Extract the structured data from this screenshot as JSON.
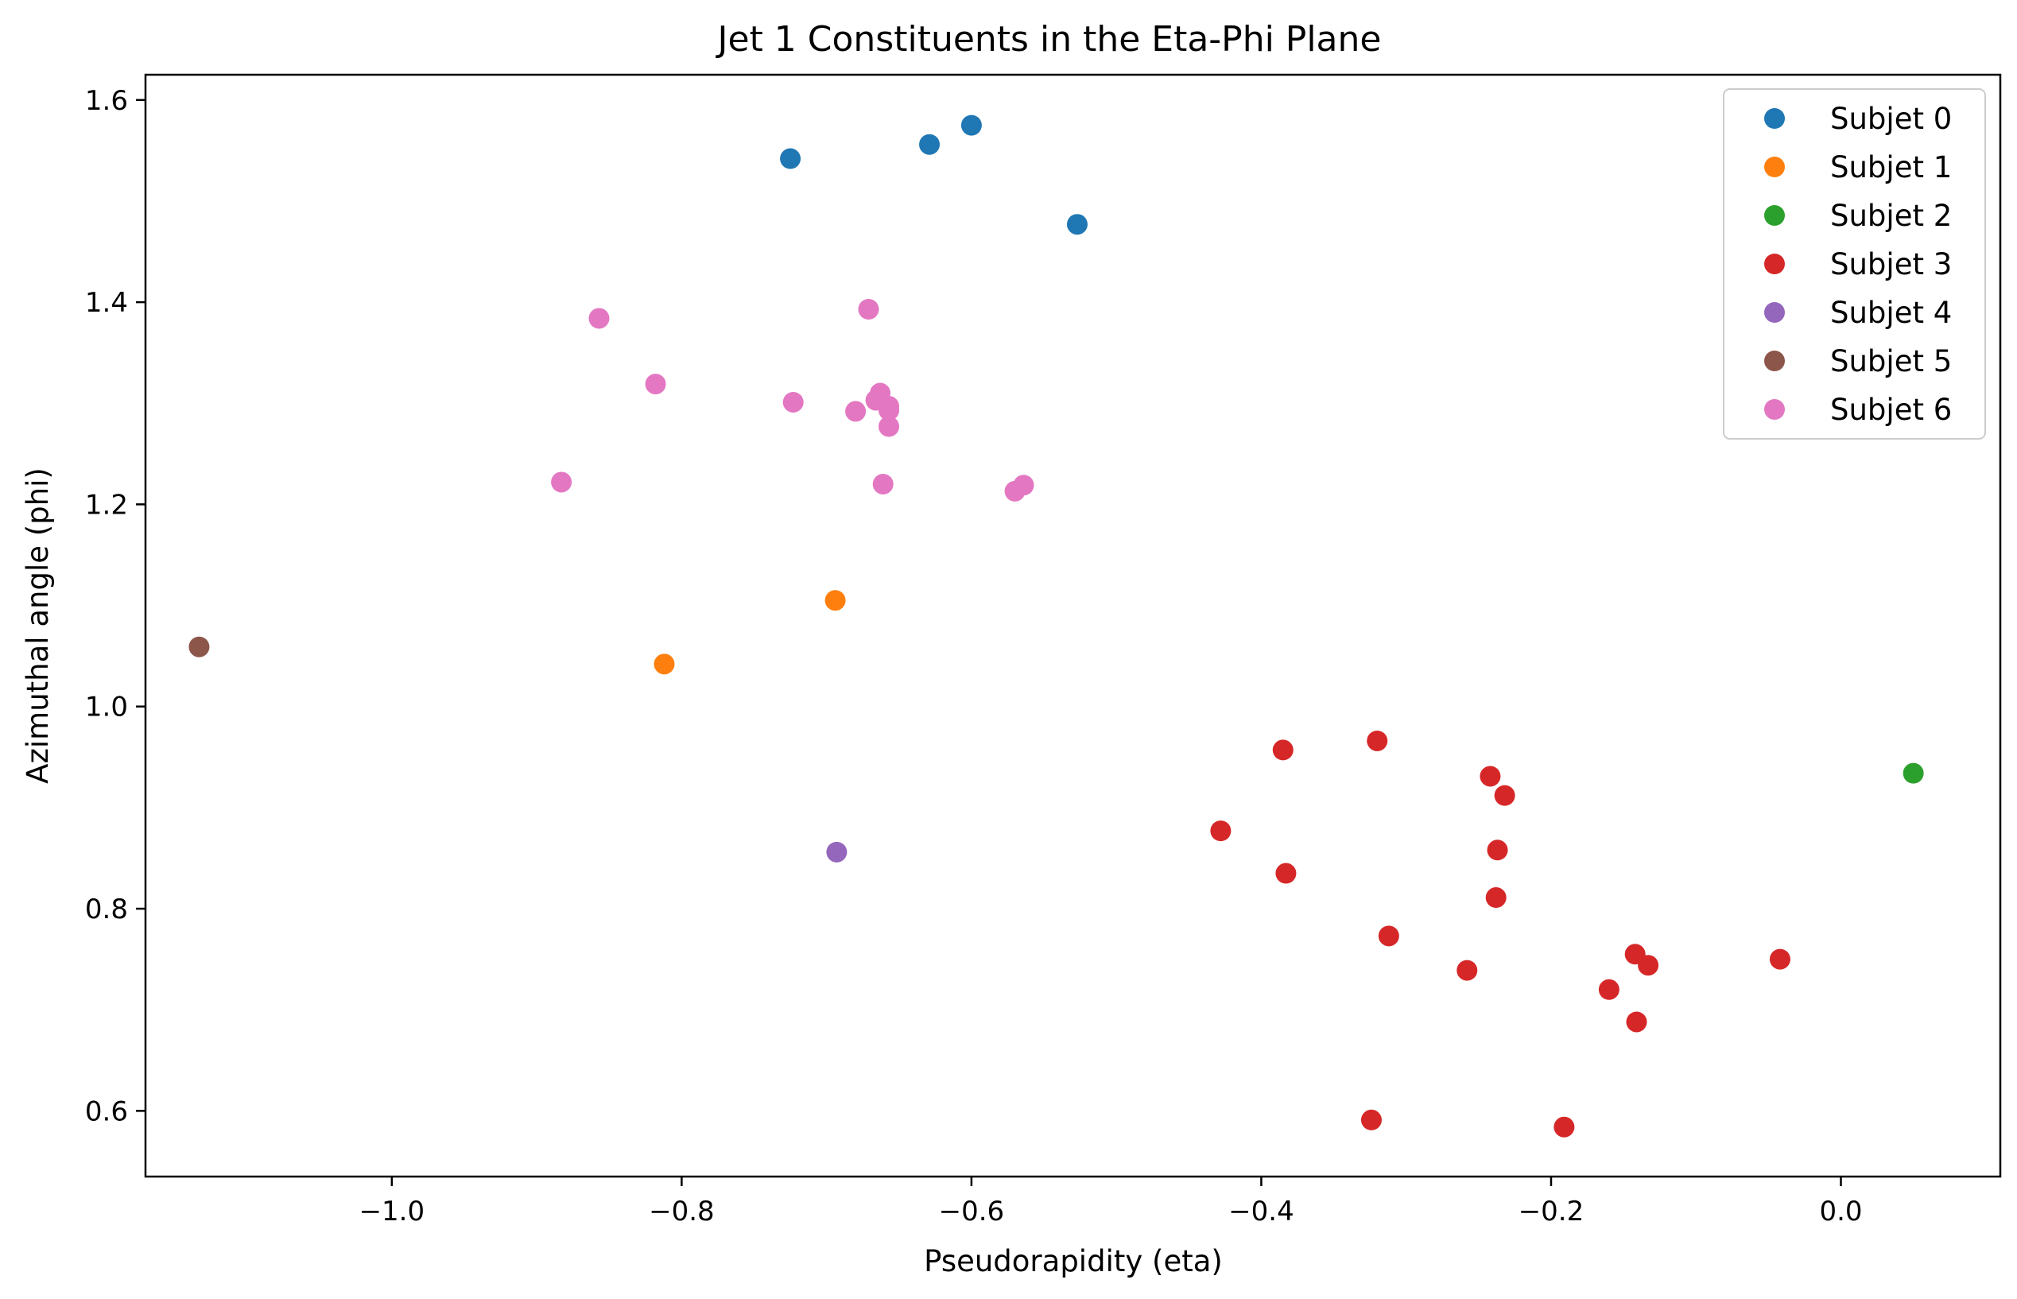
{
  "chart_data": {
    "type": "scatter",
    "title": "Jet 1 Constituents in the Eta-Phi Plane",
    "xlabel": "Pseudorapidity (eta)",
    "ylabel": "Azimuthal angle (phi)",
    "xlim": [
      -1.17,
      0.11
    ],
    "ylim": [
      0.535,
      1.625
    ],
    "xticks": [
      -1.0,
      -0.8,
      -0.6,
      -0.4,
      -0.2,
      0.0
    ],
    "xtick_labels": [
      "−1.0",
      "−0.8",
      "−0.6",
      "−0.4",
      "−0.2",
      "0.0"
    ],
    "yticks": [
      0.6,
      0.8,
      1.0,
      1.2,
      1.4,
      1.6
    ],
    "ytick_labels": [
      "0.6",
      "0.8",
      "1.0",
      "1.2",
      "1.4",
      "1.6"
    ],
    "grid": false,
    "legend_position": "top-right",
    "series": [
      {
        "name": "Subjet 0",
        "color": "#1f77b4",
        "points": [
          [
            -0.725,
            1.542
          ],
          [
            -0.629,
            1.556
          ],
          [
            -0.6,
            1.575
          ],
          [
            -0.527,
            1.477
          ]
        ]
      },
      {
        "name": "Subjet 1",
        "color": "#ff7f0e",
        "points": [
          [
            -0.694,
            1.105
          ],
          [
            -0.812,
            1.042
          ]
        ]
      },
      {
        "name": "Subjet 2",
        "color": "#2ca02c",
        "points": [
          [
            0.05,
            0.934
          ]
        ]
      },
      {
        "name": "Subjet 3",
        "color": "#d62728",
        "points": [
          [
            -0.385,
            0.957
          ],
          [
            -0.32,
            0.966
          ],
          [
            -0.242,
            0.931
          ],
          [
            -0.232,
            0.912
          ],
          [
            -0.428,
            0.877
          ],
          [
            -0.237,
            0.858
          ],
          [
            -0.383,
            0.835
          ],
          [
            -0.238,
            0.811
          ],
          [
            -0.312,
            0.773
          ],
          [
            -0.258,
            0.739
          ],
          [
            -0.142,
            0.755
          ],
          [
            -0.133,
            0.744
          ],
          [
            -0.042,
            0.75
          ],
          [
            -0.16,
            0.72
          ],
          [
            -0.141,
            0.688
          ],
          [
            -0.324,
            0.591
          ],
          [
            -0.191,
            0.584
          ]
        ]
      },
      {
        "name": "Subjet 4",
        "color": "#9467bd",
        "points": [
          [
            -0.693,
            0.856
          ]
        ]
      },
      {
        "name": "Subjet 5",
        "color": "#8c564b",
        "points": [
          [
            -1.133,
            1.059
          ]
        ]
      },
      {
        "name": "Subjet 6",
        "color": "#e377c2",
        "points": [
          [
            -0.671,
            1.393
          ],
          [
            -0.857,
            1.384
          ],
          [
            -0.818,
            1.319
          ],
          [
            -0.723,
            1.301
          ],
          [
            -0.663,
            1.31
          ],
          [
            -0.666,
            1.303
          ],
          [
            -0.657,
            1.297
          ],
          [
            -0.657,
            1.293
          ],
          [
            -0.68,
            1.292
          ],
          [
            -0.657,
            1.277
          ],
          [
            -0.883,
            1.222
          ],
          [
            -0.661,
            1.22
          ],
          [
            -0.564,
            1.219
          ],
          [
            -0.57,
            1.213
          ]
        ]
      }
    ]
  }
}
